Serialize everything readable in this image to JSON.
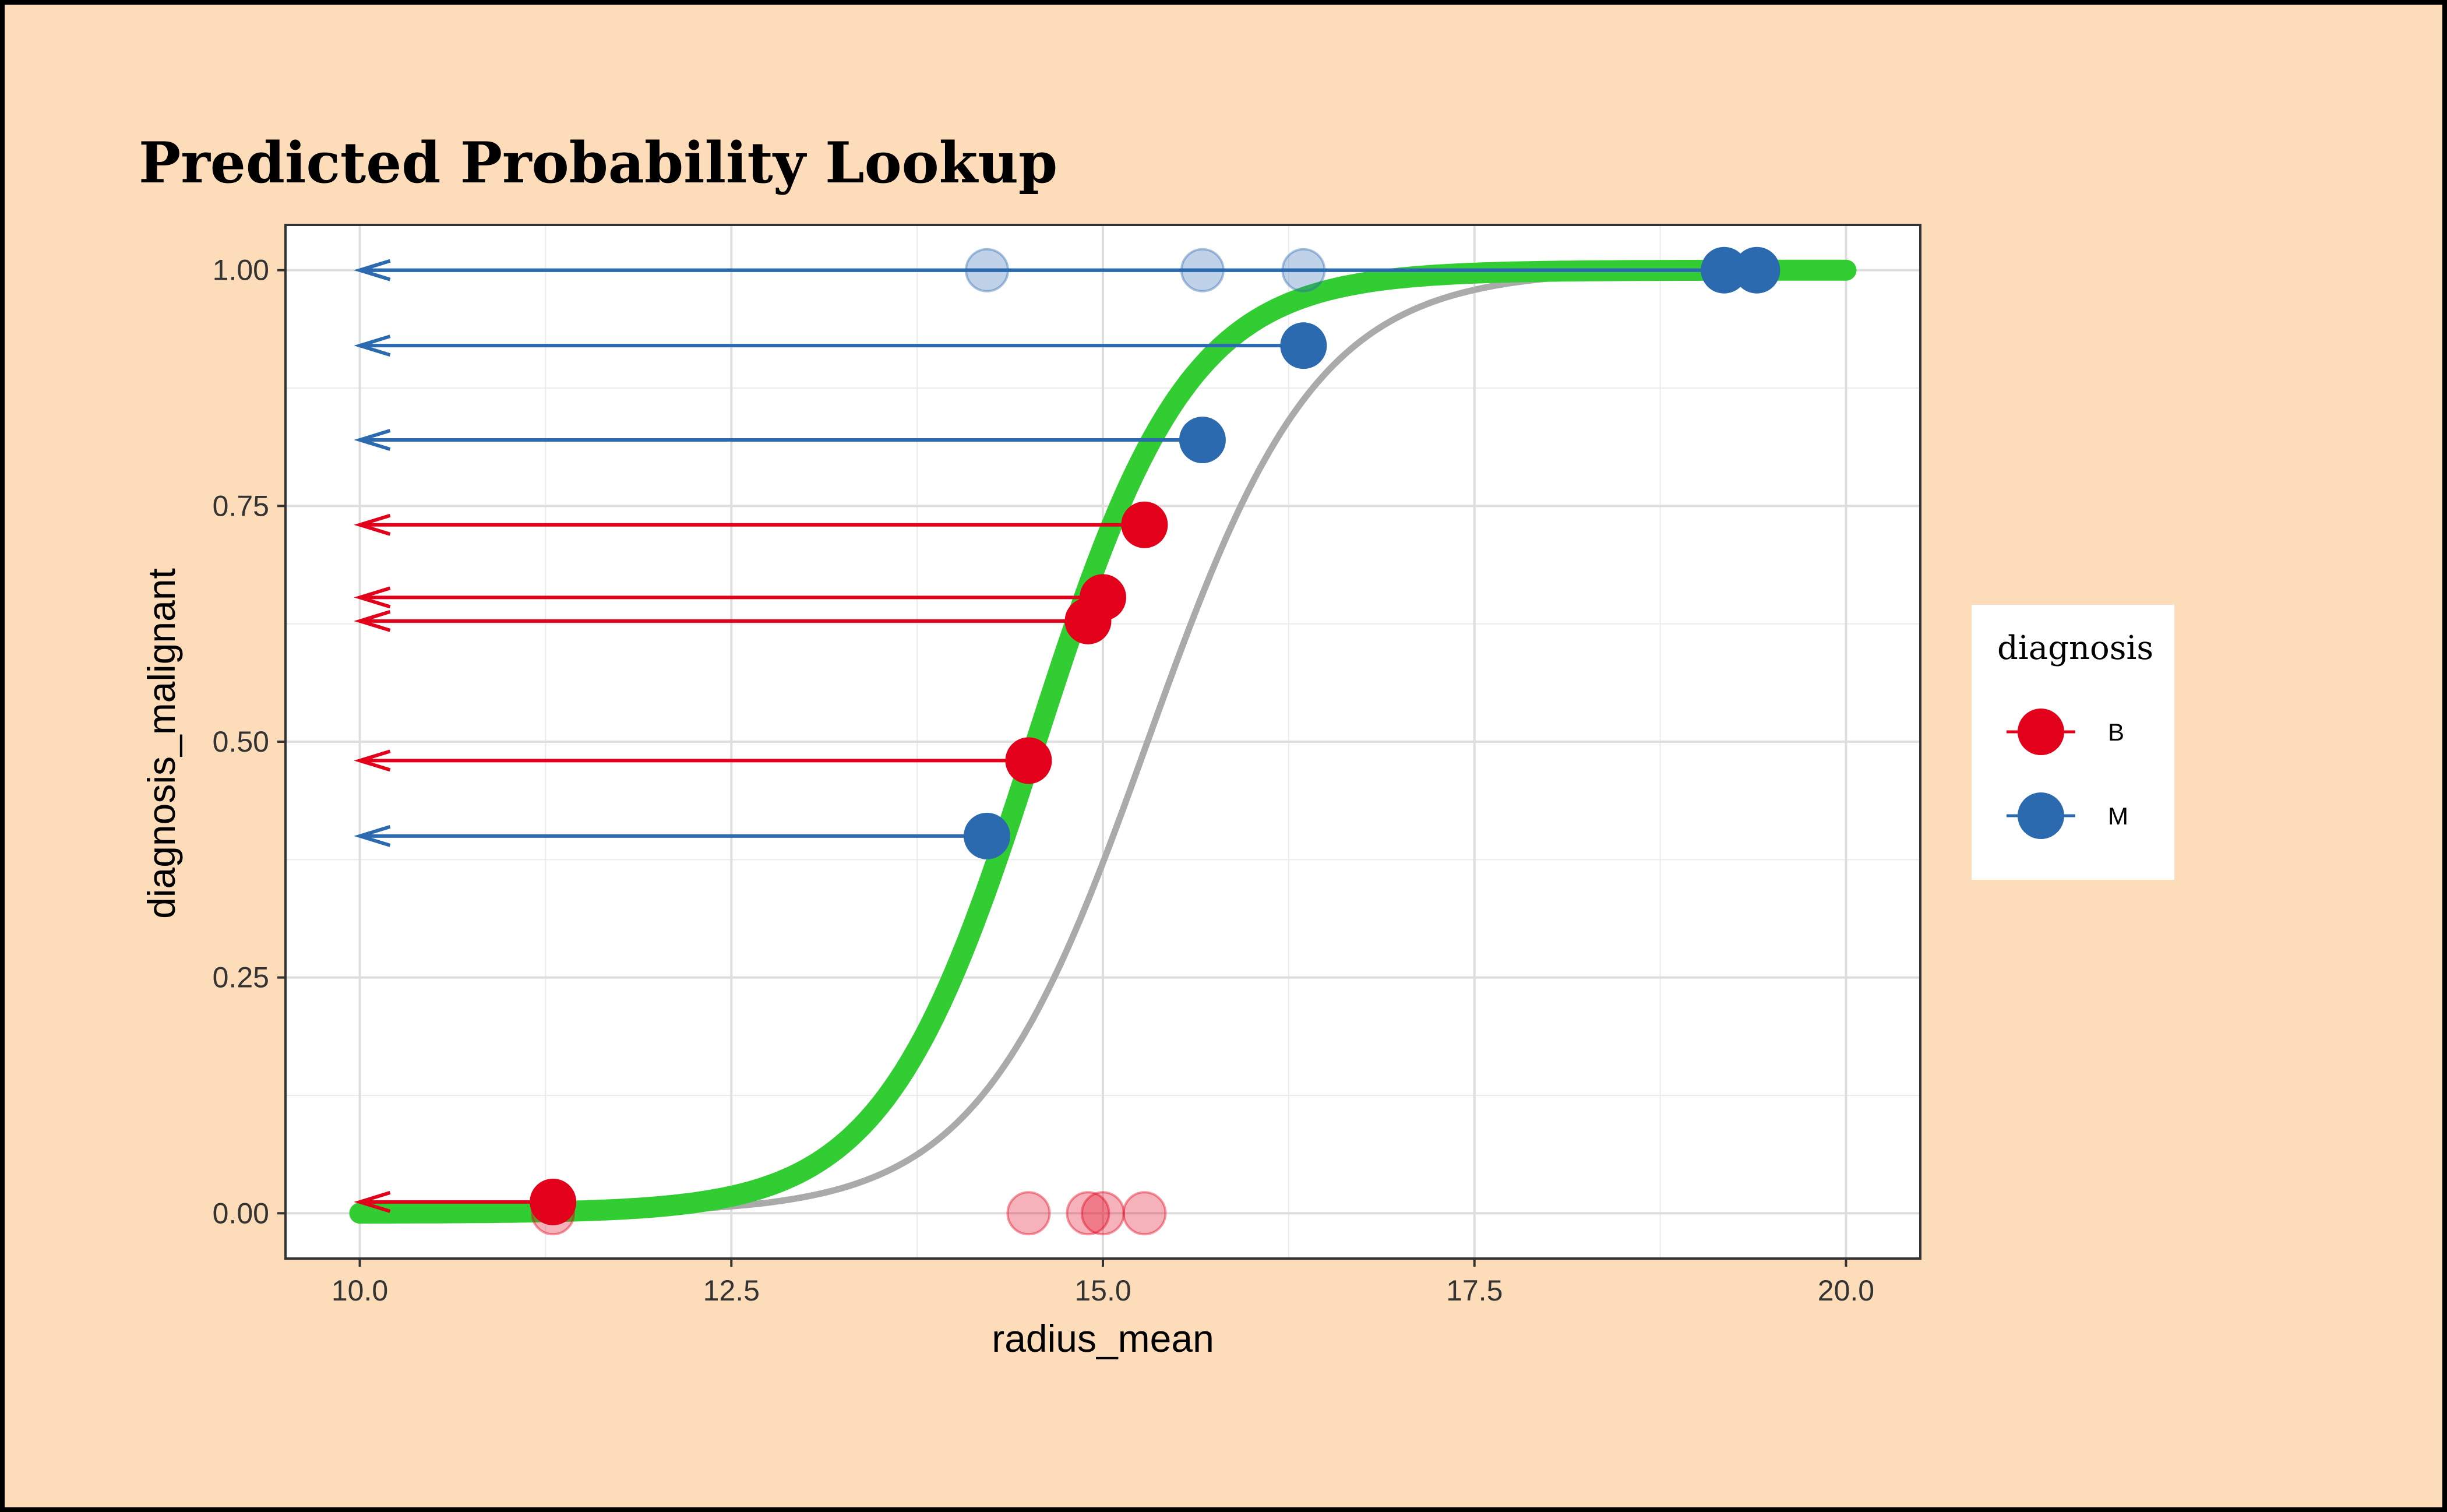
{
  "chart_data": {
    "type": "scatter",
    "title": "Predicted Probability Lookup",
    "xlabel": "radius_mean",
    "ylabel": "diagnosis_malignant",
    "xlim": [
      9.5,
      20.5
    ],
    "ylim": [
      -0.048,
      1.048
    ],
    "x_ticks": [
      10,
      12.5,
      15,
      17.5,
      20
    ],
    "x_tick_labels": [
      "10.0",
      "12.5",
      "15.0",
      "17.5",
      "20.0"
    ],
    "y_ticks": [
      0,
      0.25,
      0.5,
      0.75,
      1
    ],
    "y_tick_labels": [
      "0.00",
      "0.25",
      "0.50",
      "0.75",
      "1.00"
    ],
    "grid": true,
    "legend": {
      "title": "diagnosis",
      "placement": "right",
      "entries": [
        {
          "label": "B",
          "color": "#E2001A"
        },
        {
          "label": "M",
          "color": "#2C6AAF"
        }
      ]
    },
    "colors": {
      "B": "#E2001A",
      "M": "#2C6AAF",
      "fitted_curve": "#32CD32",
      "reference_curve": "#AAAAAA"
    },
    "curves": {
      "fitted": {
        "midpoint": 14.55,
        "slope": 1.95,
        "x_range": [
          10,
          20
        ]
      },
      "reference": {
        "midpoint": 15.3,
        "slope": 1.75,
        "x_range": [
          11.3,
          20
        ]
      }
    },
    "observed": [
      {
        "x": 11.3,
        "y": 0,
        "diagnosis": "B"
      },
      {
        "x": 14.5,
        "y": 0,
        "diagnosis": "B"
      },
      {
        "x": 14.9,
        "y": 0,
        "diagnosis": "B"
      },
      {
        "x": 15.0,
        "y": 0,
        "diagnosis": "B"
      },
      {
        "x": 15.28,
        "y": 0,
        "diagnosis": "B"
      },
      {
        "x": 14.22,
        "y": 1,
        "diagnosis": "M"
      },
      {
        "x": 15.67,
        "y": 1,
        "diagnosis": "M"
      },
      {
        "x": 16.35,
        "y": 1,
        "diagnosis": "M"
      },
      {
        "x": 19.18,
        "y": 1,
        "diagnosis": "M"
      },
      {
        "x": 19.4,
        "y": 1,
        "diagnosis": "M"
      }
    ],
    "predicted": [
      {
        "x": 11.3,
        "y": 0.012,
        "diagnosis": "B"
      },
      {
        "x": 14.22,
        "y": 0.4,
        "diagnosis": "M"
      },
      {
        "x": 14.5,
        "y": 0.48,
        "diagnosis": "B"
      },
      {
        "x": 14.9,
        "y": 0.628,
        "diagnosis": "B"
      },
      {
        "x": 15.0,
        "y": 0.653,
        "diagnosis": "B"
      },
      {
        "x": 15.28,
        "y": 0.73,
        "diagnosis": "B"
      },
      {
        "x": 15.67,
        "y": 0.82,
        "diagnosis": "M"
      },
      {
        "x": 16.35,
        "y": 0.92,
        "diagnosis": "M"
      },
      {
        "x": 19.18,
        "y": 1.0,
        "diagnosis": "M"
      },
      {
        "x": 19.4,
        "y": 1.0,
        "diagnosis": "M"
      }
    ],
    "arrows_to_x": 10
  }
}
